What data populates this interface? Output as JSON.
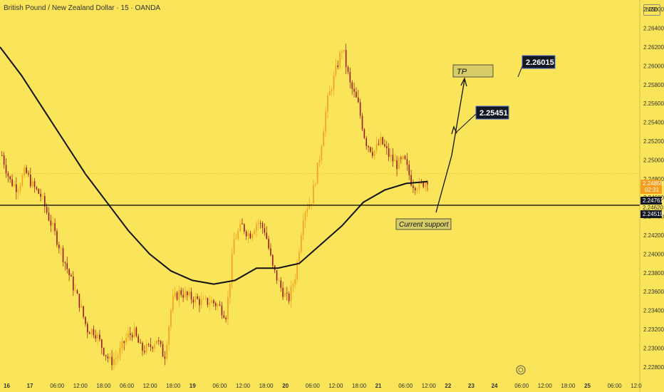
{
  "header": {
    "pair_title": "British Pound / New Zealand Dollar · 15 · OANDA",
    "currency_badge": "NZD"
  },
  "colors": {
    "background": "#f9e45a",
    "candle_up": "#f59e1a",
    "candle_down": "#9a1818",
    "moving_average": "#111111",
    "support_line": "#111111",
    "label_dark": "#131722",
    "label_olive": "#d6cc6a"
  },
  "chart_data": {
    "type": "candlestick",
    "symbol": "GBPNZD",
    "timeframe": "15",
    "ylim": [
      2.227,
      2.267
    ],
    "y_ticks": [
      "2.26600",
      "2.26400",
      "2.26200",
      "2.26000",
      "2.25800",
      "2.25600",
      "2.25400",
      "2.25200",
      "2.25000",
      "2.24800",
      "2.24600",
      "2.24400",
      "2.24200",
      "2.24000",
      "2.23800",
      "2.23600",
      "2.23400",
      "2.23200",
      "2.23000",
      "2.22800"
    ],
    "x_ticks": [
      {
        "label": "16",
        "bold": true
      },
      {
        "label": "17",
        "bold": true
      },
      {
        "label": "06:00"
      },
      {
        "label": "12:00"
      },
      {
        "label": "18:00"
      },
      {
        "label": "06:00"
      },
      {
        "label": "12:00"
      },
      {
        "label": "18:00"
      },
      {
        "label": "19",
        "bold": true
      },
      {
        "label": "06:00"
      },
      {
        "label": "12:00"
      },
      {
        "label": "18:00"
      },
      {
        "label": "20",
        "bold": true
      },
      {
        "label": "06:00"
      },
      {
        "label": "12:00"
      },
      {
        "label": "18:00"
      },
      {
        "label": "21",
        "bold": true
      },
      {
        "label": "06:00"
      },
      {
        "label": "12:00"
      },
      {
        "label": "22",
        "bold": true
      },
      {
        "label": "23",
        "bold": true
      },
      {
        "label": "24",
        "bold": true
      },
      {
        "label": "06:00"
      },
      {
        "label": "12:00"
      },
      {
        "label": "18:00"
      },
      {
        "label": "25",
        "bold": true
      },
      {
        "label": "06:00"
      },
      {
        "label": "12:0"
      }
    ],
    "price_path": [
      2.2505,
      2.2478,
      2.247,
      2.2488,
      2.2472,
      2.2462,
      2.244,
      2.2418,
      2.2395,
      2.237,
      2.2348,
      2.232,
      2.2318,
      2.23,
      2.2285,
      2.2292,
      2.231,
      2.2318,
      2.2298,
      2.23,
      2.231,
      2.229,
      2.235,
      2.236,
      2.2355,
      2.2352,
      2.2348,
      2.235,
      2.2345,
      2.2335,
      2.2415,
      2.243,
      2.242,
      2.2435,
      2.2425,
      2.2385,
      2.2365,
      2.235,
      2.238,
      2.2445,
      2.2458,
      2.25,
      2.256,
      2.259,
      2.262,
      2.258,
      2.256,
      2.252,
      2.2508,
      2.252,
      2.2505,
      2.2495,
      2.25,
      2.2475,
      2.2472,
      2.248
    ],
    "moving_average": [
      2.262,
      2.259,
      2.2555,
      2.252,
      2.2485,
      2.2455,
      2.2425,
      2.24,
      2.2382,
      2.2372,
      2.2368,
      2.2372,
      2.2385,
      2.2385,
      2.239,
      2.241,
      2.243,
      2.2455,
      2.2468,
      2.2475,
      2.2477
    ],
    "support": {
      "price": 2.24519,
      "label": "Current support",
      "axis_label": "2.24519"
    },
    "current_price": {
      "price": 2.24855,
      "axis_label": "2.24855",
      "countdown": "02:31"
    },
    "ma_value": {
      "price": 2.24761,
      "axis_label": "2.24761"
    },
    "high_low_label": {
      "price": 2.2462,
      "axis_label": "2.24620"
    },
    "targets": [
      {
        "price": 2.25451,
        "label": "2.25451"
      },
      {
        "price": 2.26015,
        "label": "2.26015"
      }
    ],
    "tp_box": {
      "label": "TP"
    }
  }
}
